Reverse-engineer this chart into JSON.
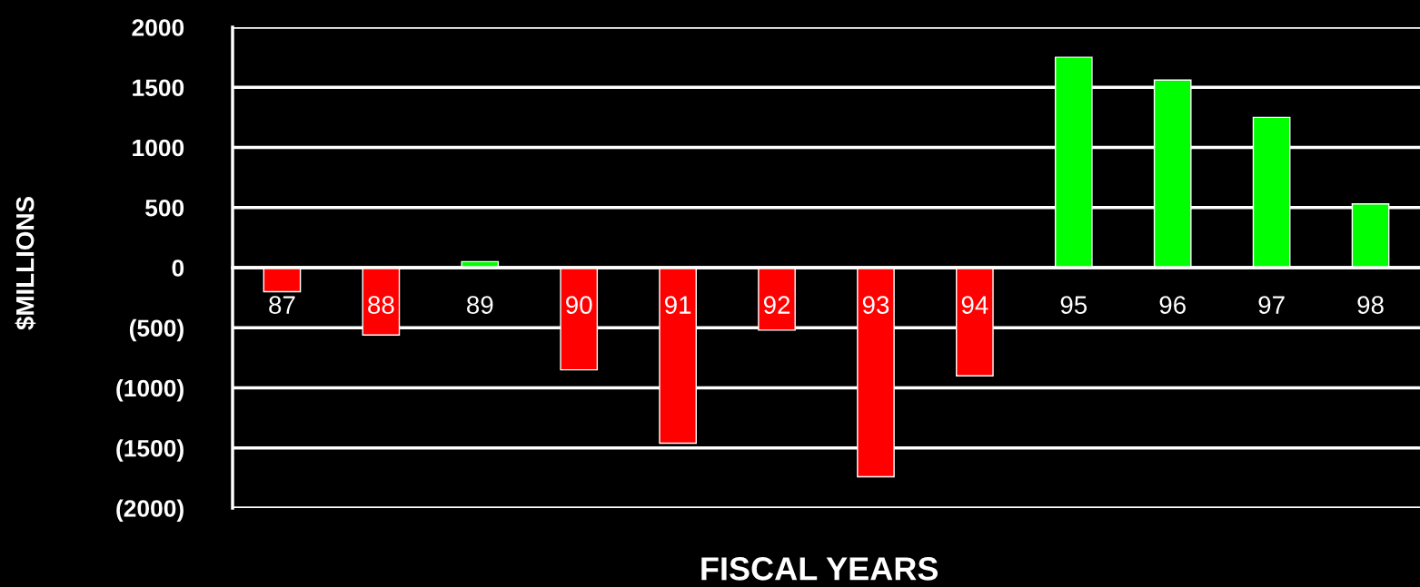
{
  "chart_data": {
    "type": "bar",
    "xlabel": "FISCAL YEARS",
    "ylabel": "$MILLIONS",
    "categories": [
      "87",
      "88",
      "89",
      "90",
      "91",
      "92",
      "93",
      "94",
      "95",
      "96",
      "97",
      "98"
    ],
    "values": [
      -200,
      -560,
      50,
      -850,
      -1460,
      -520,
      -1740,
      -900,
      1750,
      1560,
      1250,
      530
    ],
    "colors": [
      "#ff0000",
      "#ff0000",
      "#00ff00",
      "#ff0000",
      "#ff0000",
      "#ff0000",
      "#ff0000",
      "#ff0000",
      "#00ff00",
      "#00ff00",
      "#00ff00",
      "#00ff00"
    ],
    "ylim": [
      -2000,
      2000
    ],
    "yticks": [
      {
        "value": -2000,
        "label": "(2000)"
      },
      {
        "value": -1500,
        "label": "(1500)"
      },
      {
        "value": -1000,
        "label": "(1000)"
      },
      {
        "value": -500,
        "label": "(500)"
      },
      0,
      500,
      1000,
      1500,
      2000
    ],
    "grid": "y"
  }
}
